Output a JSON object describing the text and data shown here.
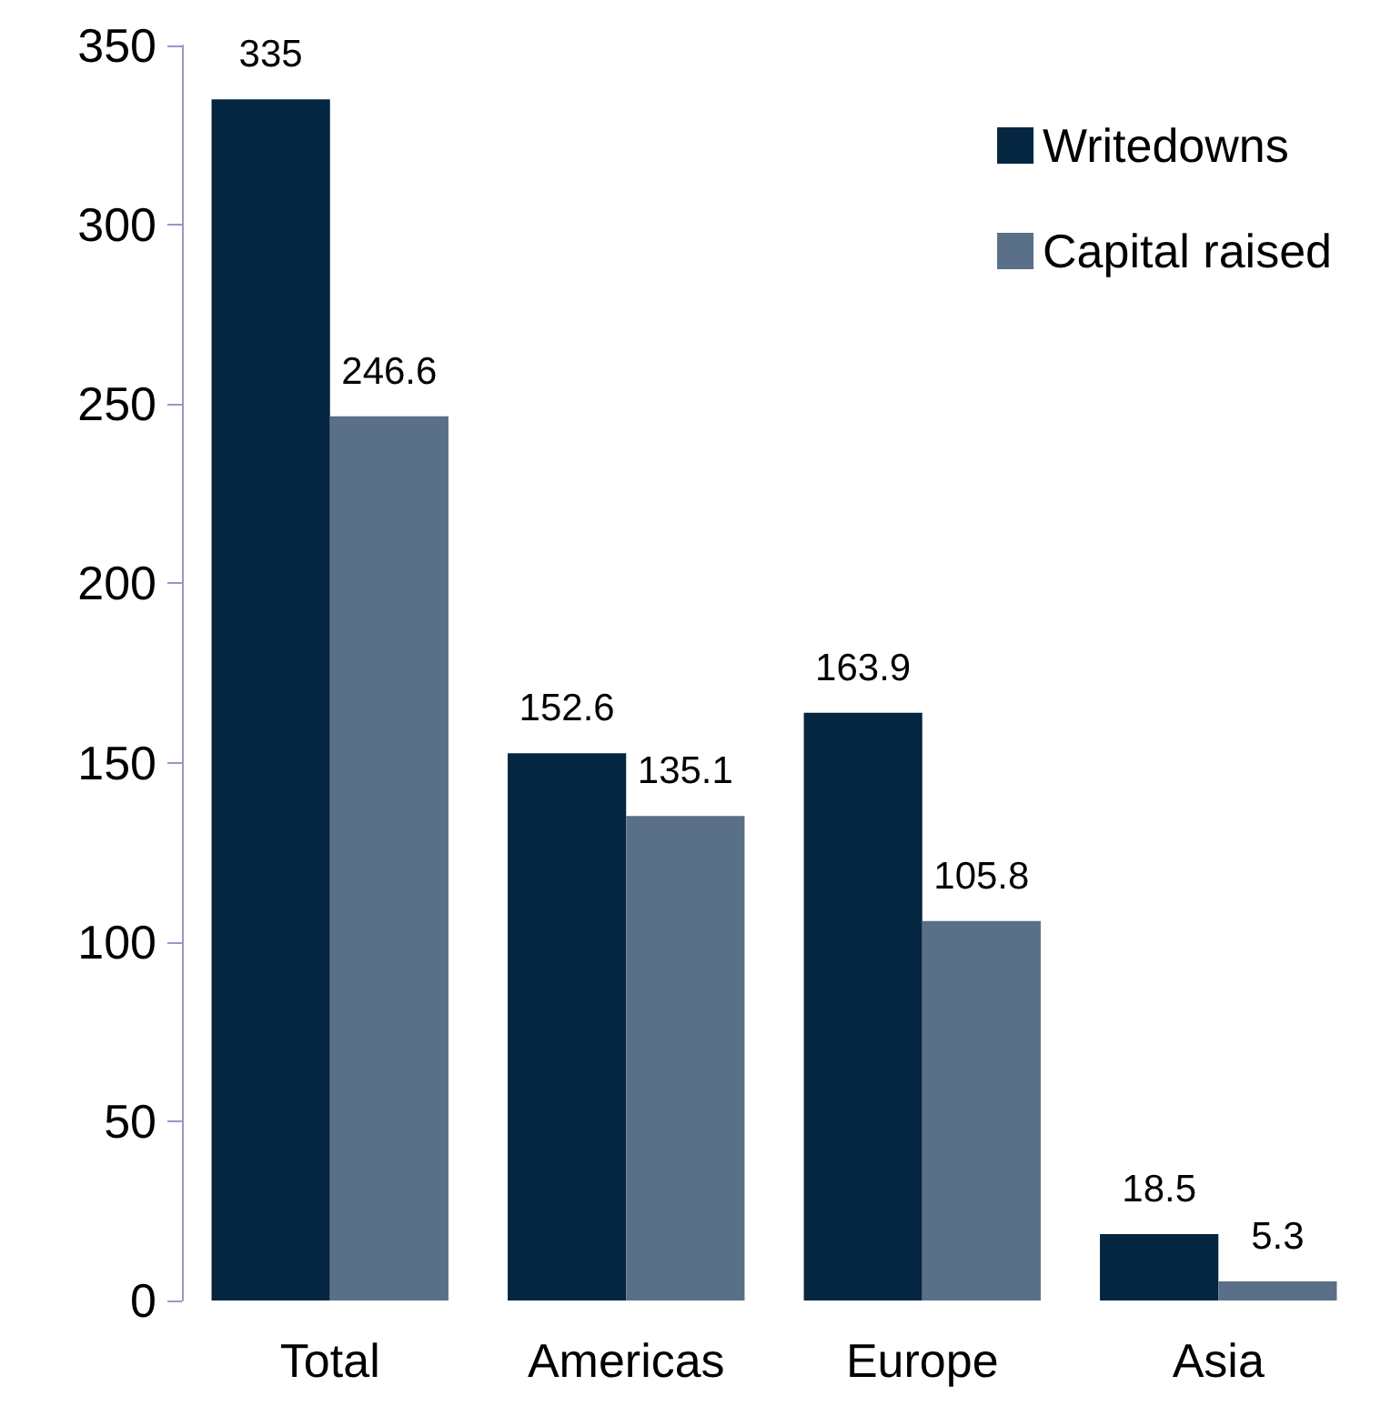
{
  "chart_data": {
    "type": "bar",
    "categories": [
      "Total",
      "Americas",
      "Europe",
      "Asia"
    ],
    "series": [
      {
        "name": "Writedowns",
        "color": "#042641",
        "values": [
          335,
          152.6,
          163.9,
          18.5
        ]
      },
      {
        "name": "Capital raised",
        "color": "#5a6f88",
        "values": [
          246.6,
          135.1,
          105.8,
          5.3
        ]
      }
    ],
    "ylim": [
      0,
      350
    ],
    "yticks": [
      0,
      50,
      100,
      150,
      200,
      250,
      300,
      350
    ],
    "data_labels": true,
    "legend": "top right",
    "grid": false
  }
}
